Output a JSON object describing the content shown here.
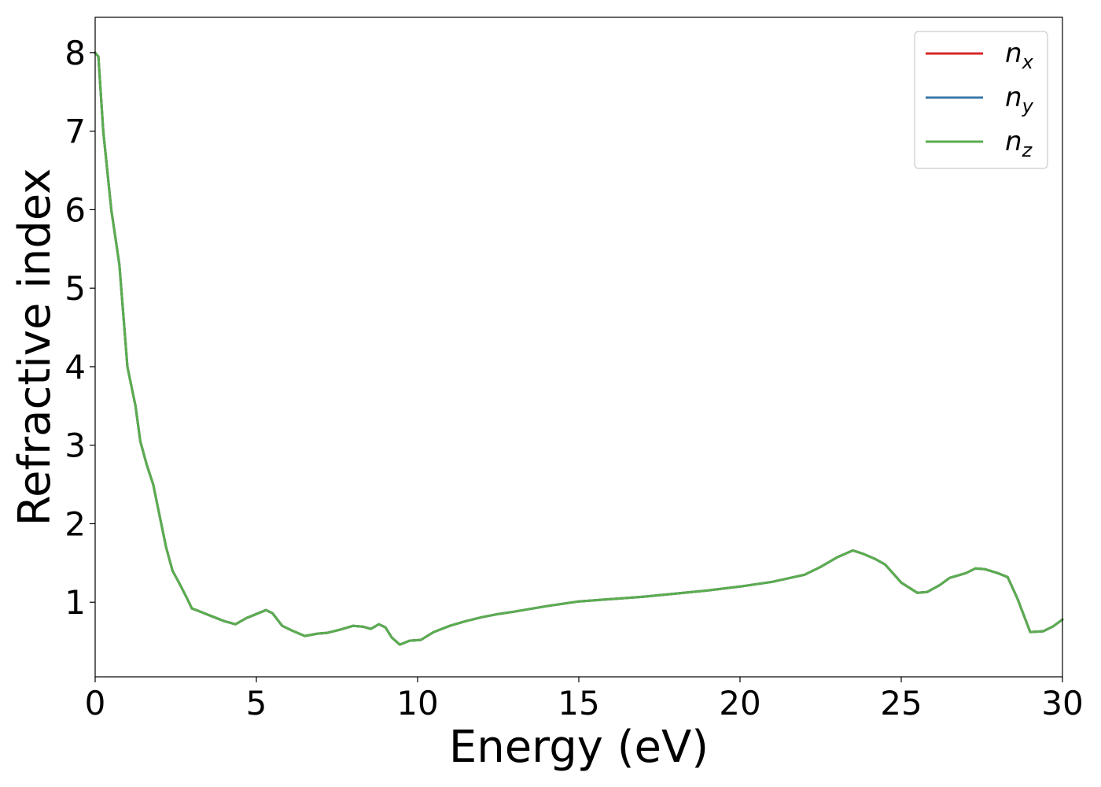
{
  "chart_data": {
    "type": "line",
    "xlabel": "Energy (eV)",
    "ylabel": "Refractive index",
    "xlim": [
      0,
      30
    ],
    "ylim": [
      0.05,
      8.45
    ],
    "xticks": [
      0,
      5,
      10,
      15,
      20,
      25,
      30
    ],
    "yticks": [
      1,
      2,
      3,
      4,
      5,
      6,
      7,
      8
    ],
    "grid": false,
    "legend_position": "top-right",
    "series": [
      {
        "name": "n",
        "subscript": "x",
        "color": "#d62728",
        "x": [
          0,
          0.1,
          0.25,
          0.5,
          0.75,
          1.0,
          1.1,
          1.25,
          1.4,
          1.6,
          1.8,
          2.0,
          2.2,
          2.4,
          2.6,
          2.85,
          3.0,
          3.2,
          3.5,
          4.0,
          4.35,
          4.7,
          5.0,
          5.3,
          5.5,
          5.8,
          6.1,
          6.5,
          6.9,
          7.2,
          7.6,
          8.0,
          8.3,
          8.55,
          8.8,
          9.0,
          9.2,
          9.45,
          9.75,
          10.1,
          10.5,
          11.0,
          11.5,
          12.0,
          12.5,
          13.0,
          14.0,
          15.0,
          16.0,
          17.0,
          18.0,
          19.0,
          20.0,
          21.0,
          22.0,
          22.5,
          23.0,
          23.5,
          23.8,
          24.2,
          24.5,
          25.0,
          25.5,
          25.8,
          26.2,
          26.5,
          27.0,
          27.3,
          27.6,
          28.0,
          28.3,
          28.6,
          29.0,
          29.4,
          29.7,
          30.0
        ],
        "y": [
          8.0,
          7.95,
          7.0,
          6.0,
          5.3,
          4.0,
          3.8,
          3.5,
          3.05,
          2.75,
          2.5,
          2.1,
          1.7,
          1.4,
          1.25,
          1.05,
          0.92,
          0.89,
          0.84,
          0.76,
          0.72,
          0.8,
          0.85,
          0.9,
          0.86,
          0.7,
          0.64,
          0.57,
          0.6,
          0.61,
          0.65,
          0.7,
          0.69,
          0.66,
          0.72,
          0.68,
          0.55,
          0.46,
          0.51,
          0.52,
          0.62,
          0.7,
          0.76,
          0.81,
          0.85,
          0.88,
          0.95,
          1.01,
          1.04,
          1.07,
          1.11,
          1.15,
          1.2,
          1.26,
          1.35,
          1.45,
          1.57,
          1.66,
          1.62,
          1.55,
          1.48,
          1.25,
          1.12,
          1.13,
          1.22,
          1.31,
          1.37,
          1.43,
          1.42,
          1.37,
          1.32,
          1.05,
          0.62,
          0.63,
          0.69,
          0.78
        ]
      },
      {
        "name": "n",
        "subscript": "y",
        "color": "#3a78a8",
        "x": [
          0,
          0.1,
          0.25,
          0.5,
          0.75,
          1.0,
          1.1,
          1.25,
          1.4,
          1.6,
          1.8,
          2.0,
          2.2,
          2.4,
          2.6,
          2.85,
          3.0,
          3.2,
          3.5,
          4.0,
          4.35,
          4.7,
          5.0,
          5.3,
          5.5,
          5.8,
          6.1,
          6.5,
          6.9,
          7.2,
          7.6,
          8.0,
          8.3,
          8.55,
          8.8,
          9.0,
          9.2,
          9.45,
          9.75,
          10.1,
          10.5,
          11.0,
          11.5,
          12.0,
          12.5,
          13.0,
          14.0,
          15.0,
          16.0,
          17.0,
          18.0,
          19.0,
          20.0,
          21.0,
          22.0,
          22.5,
          23.0,
          23.5,
          23.8,
          24.2,
          24.5,
          25.0,
          25.5,
          25.8,
          26.2,
          26.5,
          27.0,
          27.3,
          27.6,
          28.0,
          28.3,
          28.6,
          29.0,
          29.4,
          29.7,
          30.0
        ],
        "y": [
          8.0,
          7.95,
          7.0,
          6.0,
          5.3,
          4.0,
          3.8,
          3.5,
          3.05,
          2.75,
          2.5,
          2.1,
          1.7,
          1.4,
          1.25,
          1.05,
          0.92,
          0.89,
          0.84,
          0.76,
          0.72,
          0.8,
          0.85,
          0.9,
          0.86,
          0.7,
          0.64,
          0.57,
          0.6,
          0.61,
          0.65,
          0.7,
          0.69,
          0.66,
          0.72,
          0.68,
          0.55,
          0.46,
          0.51,
          0.52,
          0.62,
          0.7,
          0.76,
          0.81,
          0.85,
          0.88,
          0.95,
          1.01,
          1.04,
          1.07,
          1.11,
          1.15,
          1.2,
          1.26,
          1.35,
          1.45,
          1.57,
          1.66,
          1.62,
          1.55,
          1.48,
          1.25,
          1.12,
          1.13,
          1.22,
          1.31,
          1.37,
          1.43,
          1.42,
          1.37,
          1.32,
          1.05,
          0.62,
          0.63,
          0.69,
          0.78
        ]
      },
      {
        "name": "n",
        "subscript": "z",
        "color": "#5aad4f",
        "x": [
          0,
          0.1,
          0.25,
          0.5,
          0.75,
          1.0,
          1.1,
          1.25,
          1.4,
          1.6,
          1.8,
          2.0,
          2.2,
          2.4,
          2.6,
          2.85,
          3.0,
          3.2,
          3.5,
          4.0,
          4.35,
          4.7,
          5.0,
          5.3,
          5.5,
          5.8,
          6.1,
          6.5,
          6.9,
          7.2,
          7.6,
          8.0,
          8.3,
          8.55,
          8.8,
          9.0,
          9.2,
          9.45,
          9.75,
          10.1,
          10.5,
          11.0,
          11.5,
          12.0,
          12.5,
          13.0,
          14.0,
          15.0,
          16.0,
          17.0,
          18.0,
          19.0,
          20.0,
          21.0,
          22.0,
          22.5,
          23.0,
          23.5,
          23.8,
          24.2,
          24.5,
          25.0,
          25.5,
          25.8,
          26.2,
          26.5,
          27.0,
          27.3,
          27.6,
          28.0,
          28.3,
          28.6,
          29.0,
          29.4,
          29.7,
          30.0
        ],
        "y": [
          8.0,
          7.95,
          7.0,
          6.0,
          5.3,
          4.0,
          3.8,
          3.5,
          3.05,
          2.75,
          2.5,
          2.1,
          1.7,
          1.4,
          1.25,
          1.05,
          0.92,
          0.89,
          0.84,
          0.76,
          0.72,
          0.8,
          0.85,
          0.9,
          0.86,
          0.7,
          0.64,
          0.57,
          0.6,
          0.61,
          0.65,
          0.7,
          0.69,
          0.66,
          0.72,
          0.68,
          0.55,
          0.46,
          0.51,
          0.52,
          0.62,
          0.7,
          0.76,
          0.81,
          0.85,
          0.88,
          0.95,
          1.01,
          1.04,
          1.07,
          1.11,
          1.15,
          1.2,
          1.26,
          1.35,
          1.45,
          1.57,
          1.66,
          1.62,
          1.55,
          1.48,
          1.25,
          1.12,
          1.13,
          1.22,
          1.31,
          1.37,
          1.43,
          1.42,
          1.37,
          1.32,
          1.05,
          0.62,
          0.63,
          0.69,
          0.78
        ]
      }
    ]
  }
}
